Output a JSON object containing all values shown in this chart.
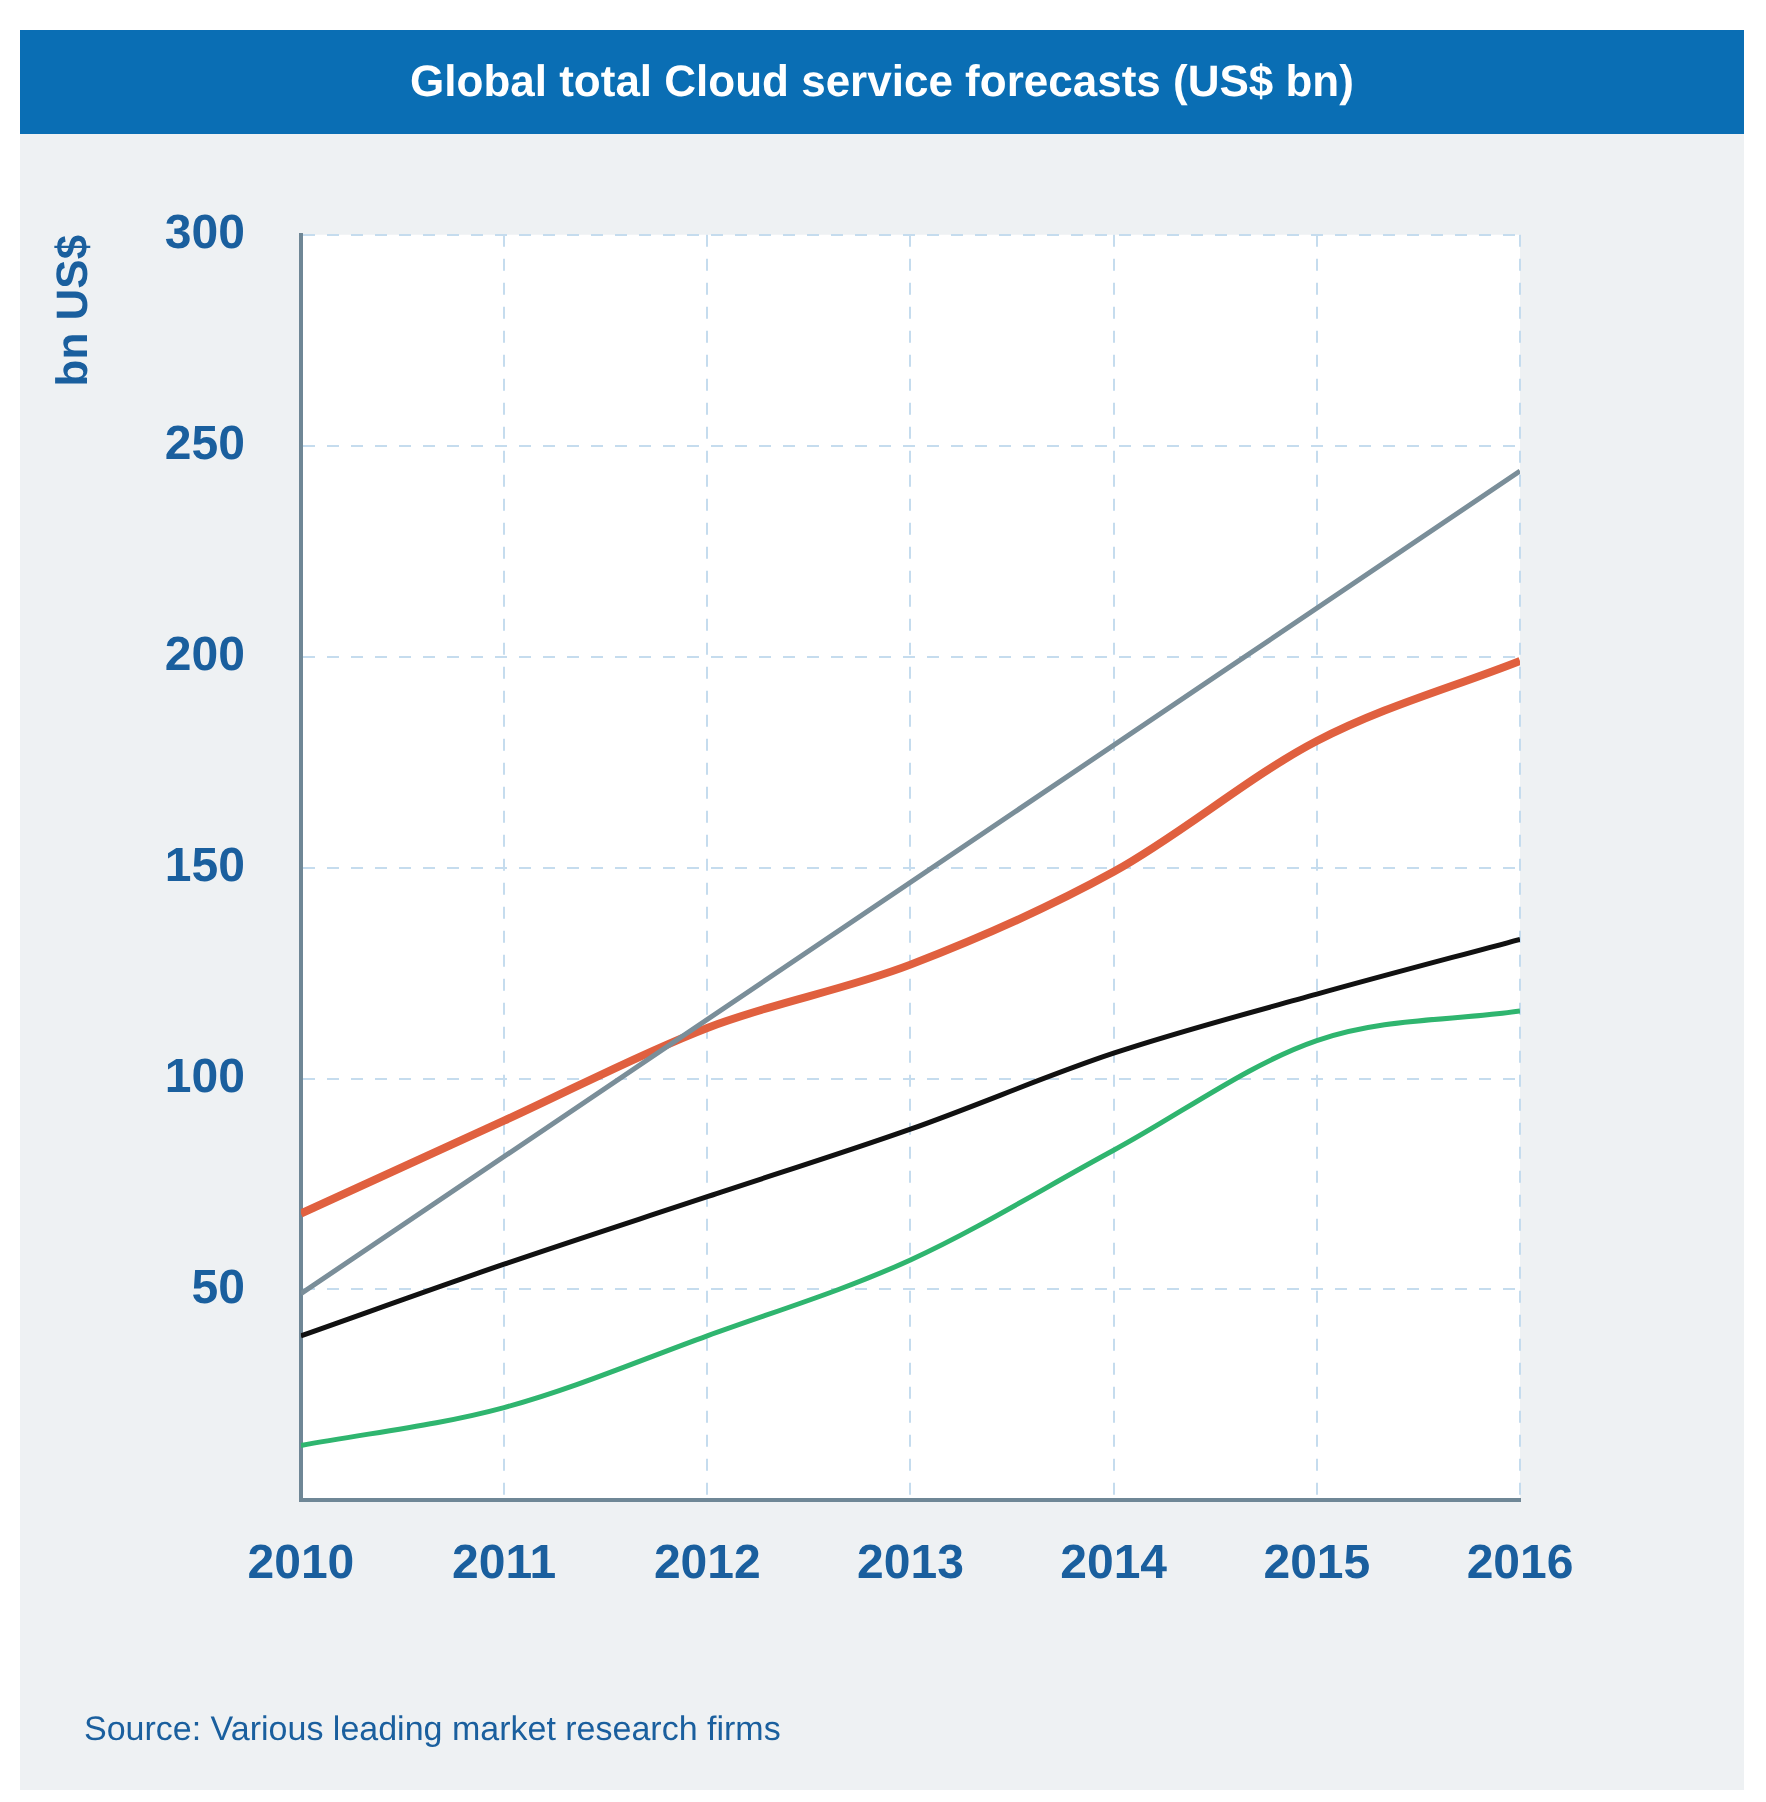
{
  "chart_data": {
    "type": "line",
    "title": "Global total Cloud service forecasts (US$ bn)",
    "ylabel": "bn US$",
    "x": [
      2010,
      2011,
      2012,
      2013,
      2014,
      2015,
      2016
    ],
    "series": [
      {
        "color": "#7a8e99",
        "x": [
          2010,
          2016
        ],
        "values": [
          49,
          244
        ]
      },
      {
        "color": "#e0603f",
        "values": [
          68,
          90,
          112,
          127,
          149,
          180,
          199
        ]
      },
      {
        "color": "#111111",
        "values": [
          39,
          56,
          72,
          88,
          106,
          120,
          133
        ]
      },
      {
        "color": "#2fb56f",
        "values": [
          13,
          22,
          39,
          57,
          83,
          109,
          116
        ]
      }
    ],
    "xlim": [
      2010,
      2016
    ],
    "xticks": [
      2010,
      2011,
      2012,
      2013,
      2014,
      2015,
      2016
    ],
    "ylim": [
      0,
      300
    ],
    "yticks": [
      50,
      100,
      150,
      200,
      250,
      300
    ],
    "grid": true,
    "marker": "none",
    "line_style": "solid",
    "annotations": [
      "Source: Various leading market research firms"
    ]
  }
}
